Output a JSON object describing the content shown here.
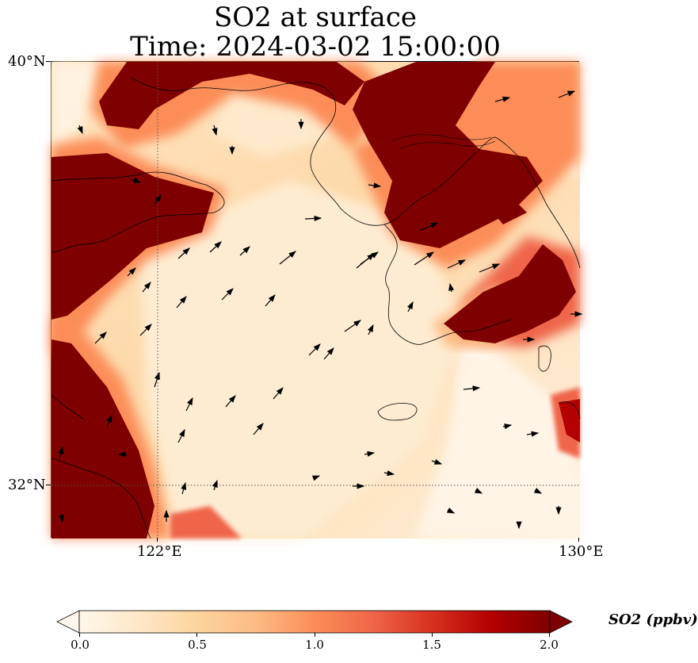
{
  "title": {
    "line1": "SO2 at surface",
    "line2": "Time: 2024-03-02 15:00:00"
  },
  "map": {
    "lat_labels": [
      "40°N",
      "32°N"
    ],
    "lon_labels": [
      "122°E",
      "130°E"
    ],
    "extent": {
      "lon_min": 120,
      "lon_max": 130,
      "lat_min": 31,
      "lat_max": 40
    },
    "gridlines": {
      "lon": [
        122,
        130
      ],
      "lat": [
        32
      ]
    },
    "features": [
      "coastlines",
      "wind-vectors",
      "so2-field"
    ]
  },
  "colorbar": {
    "label": "SO2 (ppbv)",
    "ticks": [
      "0.0",
      "0.5",
      "1.0",
      "1.5",
      "2.0"
    ],
    "vmin": 0,
    "vmax": 2,
    "extend": "both",
    "colormap": "OrRd",
    "colors": [
      "#fff7ec",
      "#fee8c8",
      "#fdd49e",
      "#fdbb84",
      "#fc8d59",
      "#ef6548",
      "#d7301f",
      "#b30000",
      "#7f0000"
    ]
  }
}
